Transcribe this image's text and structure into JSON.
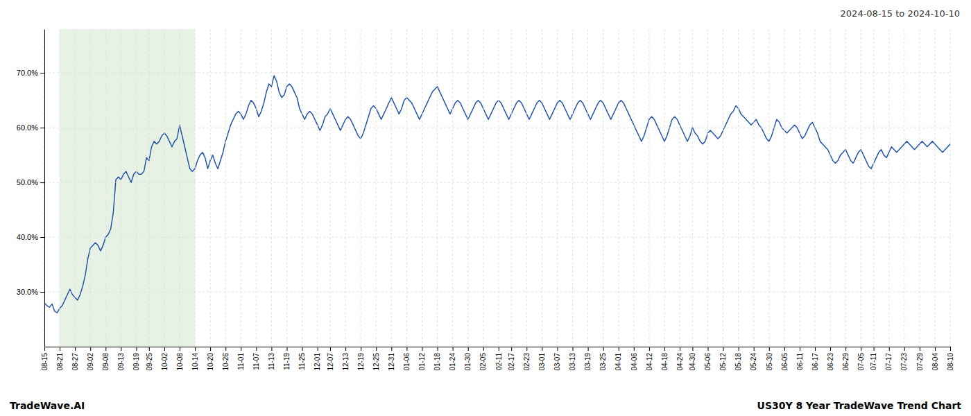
{
  "chart_data": {
    "type": "line",
    "title": "2024-08-15 to 2024-10-10",
    "annotations": [
      "TradeWave.AI",
      "US30Y 8 Year TradeWave Trend Chart"
    ],
    "color": "#2255a8",
    "grid": true,
    "shade": {
      "from": "08-21",
      "to": "10-14",
      "color": "#d4e8ce"
    },
    "ylim": [
      20.0,
      78.0
    ],
    "yticks": [
      {
        "value": 30.0,
        "label": "30.0%"
      },
      {
        "value": 40.0,
        "label": "40.0%"
      },
      {
        "value": 50.0,
        "label": "50.0%"
      },
      {
        "value": 60.0,
        "label": "60.0%"
      },
      {
        "value": 70.0,
        "label": "70.0%"
      }
    ],
    "categories": [
      "08-15",
      null,
      null,
      null,
      null,
      null,
      "08-21",
      null,
      null,
      null,
      null,
      null,
      "08-27",
      null,
      null,
      null,
      null,
      null,
      "09-02",
      null,
      null,
      null,
      null,
      null,
      "09-08",
      null,
      null,
      null,
      null,
      null,
      "09-13",
      null,
      null,
      null,
      null,
      null,
      "09-19",
      null,
      null,
      null,
      null,
      "09-25",
      null,
      null,
      null,
      null,
      null,
      "10-02",
      null,
      null,
      null,
      null,
      null,
      "10-08",
      null,
      null,
      null,
      null,
      null,
      "10-14",
      null,
      null,
      null,
      null,
      null,
      "10-20",
      null,
      null,
      null,
      null,
      null,
      "10-26",
      null,
      null,
      null,
      null,
      null,
      "11-01",
      null,
      null,
      null,
      null,
      null,
      "11-07",
      null,
      null,
      null,
      null,
      null,
      "11-13",
      null,
      null,
      null,
      null,
      null,
      "11-19",
      null,
      null,
      null,
      null,
      null,
      "11-25",
      null,
      null,
      null,
      null,
      null,
      "12-01",
      null,
      null,
      null,
      null,
      "12-07",
      null,
      null,
      null,
      null,
      null,
      "12-13",
      null,
      null,
      null,
      null,
      null,
      "12-19",
      null,
      null,
      null,
      null,
      null,
      "12-25",
      null,
      null,
      null,
      null,
      null,
      "12-31",
      null,
      null,
      null,
      null,
      null,
      "01-06",
      null,
      null,
      null,
      null,
      null,
      "01-12",
      null,
      null,
      null,
      null,
      null,
      "01-18",
      null,
      null,
      null,
      null,
      null,
      "01-24",
      null,
      null,
      null,
      null,
      null,
      "01-30",
      null,
      null,
      null,
      null,
      null,
      "02-05",
      null,
      null,
      null,
      null,
      null,
      "02-11",
      null,
      null,
      null,
      null,
      "02-17",
      null,
      null,
      null,
      null,
      null,
      "02-23",
      null,
      null,
      null,
      null,
      null,
      "03-01",
      null,
      null,
      null,
      null,
      null,
      "03-07",
      null,
      null,
      null,
      null,
      null,
      "03-13",
      null,
      null,
      null,
      null,
      null,
      "03-19",
      null,
      null,
      null,
      null,
      null,
      "03-25",
      null,
      null,
      null,
      null,
      null,
      "04-01",
      null,
      null,
      null,
      null,
      null,
      "04-06",
      null,
      null,
      null,
      null,
      null,
      "04-12",
      null,
      null,
      null,
      null,
      null,
      "04-18",
      null,
      null,
      null,
      null,
      null,
      "04-24",
      null,
      null,
      null,
      null,
      "04-30",
      null,
      null,
      null,
      null,
      null,
      "05-06",
      null,
      null,
      null,
      null,
      null,
      "05-12",
      null,
      null,
      null,
      null,
      null,
      "05-18",
      null,
      null,
      null,
      null,
      null,
      "05-24",
      null,
      null,
      null,
      null,
      null,
      "05-30",
      null,
      null,
      null,
      null,
      null,
      "06-05",
      null,
      null,
      null,
      null,
      null,
      "06-11",
      null,
      null,
      null,
      null,
      null,
      "06-17",
      null,
      null,
      null,
      null,
      null,
      "06-23",
      null,
      null,
      null,
      null,
      null,
      "06-29",
      null,
      null,
      null,
      null,
      null,
      "07-05",
      null,
      null,
      null,
      null,
      "07-11",
      null,
      null,
      null,
      null,
      null,
      "07-17",
      null,
      null,
      null,
      null,
      null,
      "07-23",
      null,
      null,
      null,
      null,
      null,
      "07-29",
      null,
      null,
      null,
      null,
      null,
      "08-04",
      null,
      null,
      null,
      null,
      null,
      "08-10"
    ],
    "values": [
      28.0,
      27.5,
      27.2,
      27.8,
      26.5,
      26.2,
      27.0,
      27.5,
      28.5,
      29.5,
      30.5,
      29.5,
      29.0,
      28.5,
      29.5,
      31.0,
      33.0,
      36.0,
      38.0,
      38.5,
      39.0,
      38.5,
      37.5,
      38.5,
      40.0,
      40.5,
      41.5,
      44.5,
      50.5,
      51.0,
      50.5,
      51.5,
      52.0,
      51.0,
      50.0,
      51.5,
      52.0,
      51.5,
      51.5,
      52.0,
      54.5,
      54.0,
      56.5,
      57.5,
      57.0,
      57.5,
      58.5,
      59.0,
      58.5,
      57.5,
      56.5,
      57.5,
      58.0,
      60.5,
      58.5,
      56.5,
      54.5,
      52.5,
      52.0,
      52.5,
      54.0,
      55.0,
      55.5,
      54.5,
      52.5,
      54.0,
      55.0,
      53.5,
      52.5,
      54.0,
      55.5,
      57.5,
      59.0,
      60.5,
      61.5,
      62.5,
      63.0,
      62.5,
      61.5,
      62.5,
      64.0,
      65.0,
      64.5,
      63.5,
      62.0,
      63.0,
      64.5,
      66.5,
      68.0,
      67.5,
      69.5,
      68.5,
      66.5,
      65.5,
      66.0,
      67.5,
      68.0,
      67.5,
      66.5,
      65.5,
      63.5,
      62.5,
      61.5,
      62.5,
      63.0,
      62.5,
      61.5,
      60.5,
      59.5,
      60.5,
      62.0,
      62.5,
      63.5,
      62.5,
      61.5,
      60.5,
      59.5,
      60.5,
      61.5,
      62.0,
      61.5,
      60.5,
      59.5,
      58.5,
      58.0,
      59.0,
      60.5,
      62.0,
      63.5,
      64.0,
      63.5,
      62.5,
      61.5,
      62.5,
      63.5,
      64.5,
      65.5,
      64.5,
      63.5,
      62.5,
      63.5,
      65.0,
      65.5,
      65.0,
      64.5,
      63.5,
      62.5,
      61.5,
      62.5,
      63.5,
      64.5,
      65.5,
      66.5,
      67.0,
      67.5,
      66.5,
      65.5,
      64.5,
      63.5,
      62.5,
      63.5,
      64.5,
      65.0,
      64.5,
      63.5,
      62.5,
      61.5,
      62.5,
      63.5,
      64.5,
      65.0,
      64.5,
      63.5,
      62.5,
      61.5,
      62.5,
      63.5,
      64.5,
      65.0,
      64.5,
      63.5,
      62.5,
      61.5,
      62.5,
      63.5,
      64.5,
      65.0,
      64.5,
      63.5,
      62.5,
      61.5,
      62.5,
      63.5,
      64.5,
      65.0,
      64.5,
      63.5,
      62.5,
      61.5,
      62.5,
      63.5,
      64.5,
      65.0,
      64.5,
      63.5,
      62.5,
      61.5,
      62.5,
      63.5,
      64.5,
      65.0,
      64.5,
      63.5,
      62.5,
      61.5,
      62.5,
      63.5,
      64.5,
      65.0,
      64.5,
      63.5,
      62.5,
      61.5,
      62.5,
      63.5,
      64.5,
      65.0,
      64.5,
      63.5,
      62.5,
      61.5,
      60.5,
      59.5,
      58.5,
      57.5,
      58.5,
      60.0,
      61.5,
      62.0,
      61.5,
      60.5,
      59.5,
      58.5,
      57.5,
      58.5,
      60.0,
      61.5,
      62.0,
      61.5,
      60.5,
      59.5,
      58.5,
      57.5,
      58.5,
      60.0,
      59.0,
      58.5,
      57.5,
      57.0,
      57.5,
      59.0,
      59.5,
      59.0,
      58.5,
      58.0,
      58.5,
      59.5,
      60.5,
      61.5,
      62.5,
      63.0,
      64.0,
      63.5,
      62.5,
      62.0,
      61.5,
      61.0,
      60.5,
      61.0,
      61.5,
      60.5,
      60.0,
      59.0,
      58.0,
      57.5,
      58.5,
      60.0,
      61.5,
      61.0,
      60.0,
      59.5,
      59.0,
      59.5,
      60.0,
      60.5,
      60.0,
      59.0,
      58.0,
      58.5,
      59.5,
      60.5,
      61.0,
      60.0,
      59.0,
      57.5,
      57.0,
      56.5,
      56.0,
      55.0,
      54.0,
      53.5,
      54.0,
      55.0,
      55.5,
      56.0,
      55.0,
      54.0,
      53.5,
      54.5,
      55.5,
      56.0,
      55.0,
      54.0,
      53.0,
      52.5,
      53.5,
      54.5,
      55.5,
      56.0,
      55.0,
      54.5,
      55.5,
      56.5,
      56.0,
      55.5,
      56.0,
      56.5,
      57.0,
      57.5,
      57.0,
      56.5,
      56.0,
      56.5,
      57.0,
      57.5,
      57.0,
      56.5,
      57.0,
      57.5,
      57.0,
      56.5,
      56.0,
      55.5,
      56.0,
      56.5,
      57.0
    ]
  }
}
